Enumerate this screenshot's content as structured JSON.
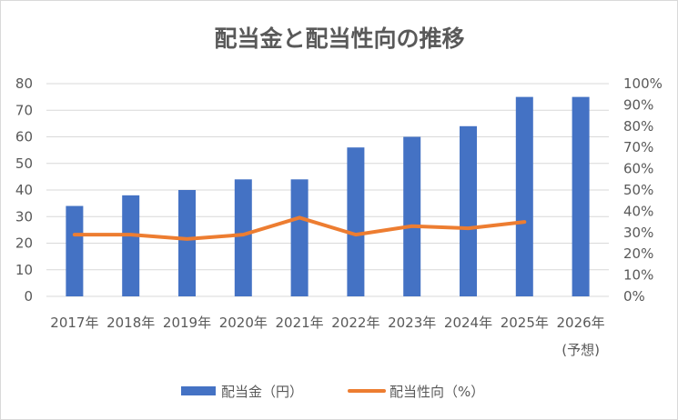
{
  "chart_data": {
    "type": "bar",
    "title": "配当金と配当性向の推移",
    "categories": [
      "2017年",
      "2018年",
      "2019年",
      "2020年",
      "2021年",
      "2022年",
      "2023年",
      "2024年",
      "2025年",
      "2026年"
    ],
    "category_sublabels": [
      "",
      "",
      "",
      "",
      "",
      "",
      "",
      "",
      "",
      "(予想)"
    ],
    "ylim": [
      0,
      80
    ],
    "y_ticks": [
      "0",
      "10",
      "20",
      "30",
      "40",
      "50",
      "60",
      "70",
      "80"
    ],
    "y2lim": [
      0,
      100
    ],
    "y2_ticks": [
      "0%",
      "10%",
      "20%",
      "30%",
      "40%",
      "50%",
      "60%",
      "70%",
      "80%",
      "90%",
      "100%"
    ],
    "grid": true,
    "legend_position": "bottom",
    "series": [
      {
        "name": "配当金（円）",
        "type": "bar",
        "axis": "left",
        "color": "#4472C4",
        "values": [
          34,
          38,
          40,
          44,
          44,
          56,
          60,
          64,
          75,
          75
        ]
      },
      {
        "name": "配当性向（%）",
        "type": "line",
        "axis": "right",
        "color": "#ED7D31",
        "values": [
          29,
          29,
          27,
          29,
          37,
          29,
          33,
          32,
          35,
          null
        ]
      }
    ]
  }
}
